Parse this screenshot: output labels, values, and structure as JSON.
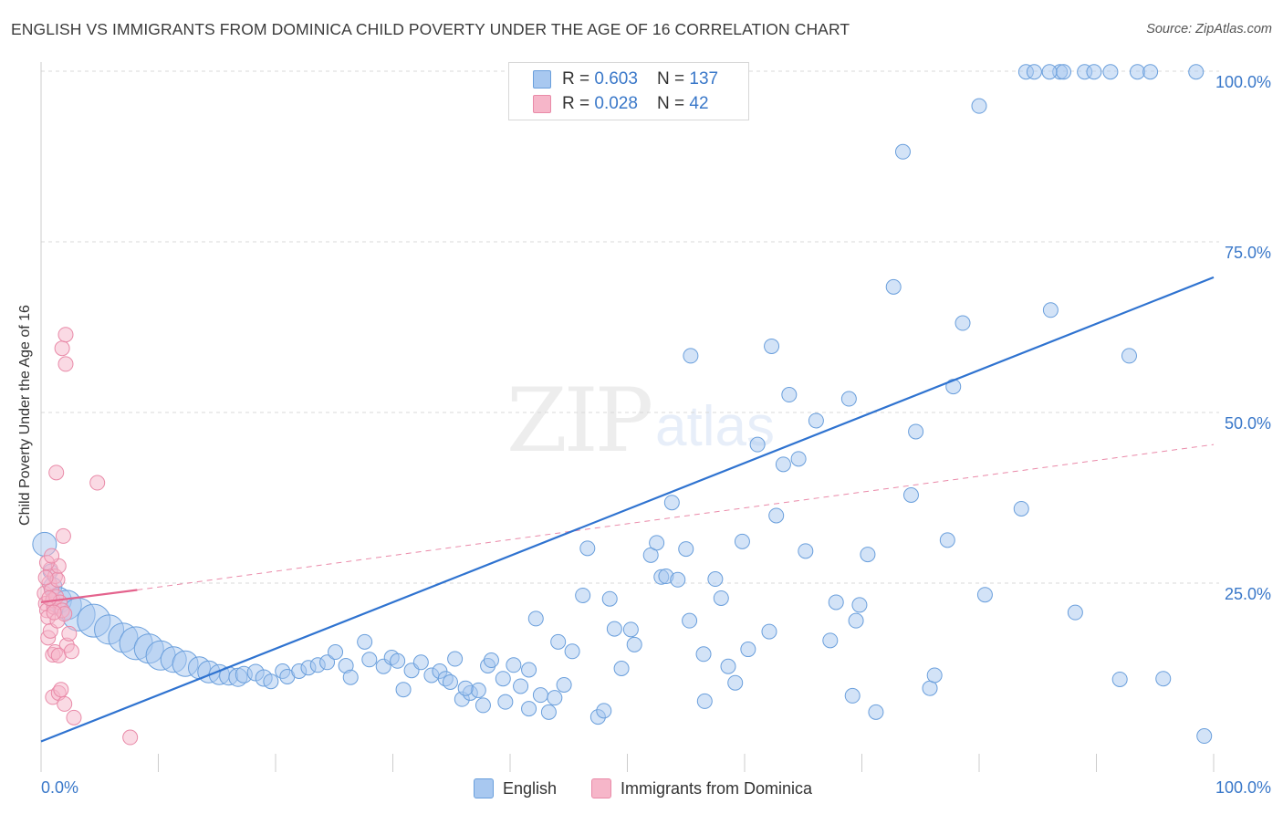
{
  "title": "ENGLISH VS IMMIGRANTS FROM DOMINICA CHILD POVERTY UNDER THE AGE OF 16 CORRELATION CHART",
  "source": "Source: ZipAtlas.com",
  "watermark": {
    "zip": "ZIP",
    "atlas": "atlas"
  },
  "legend_top": {
    "rows": [
      {
        "r_label": "R = ",
        "r_value": "0.603",
        "n_label": "N = ",
        "n_value": "137",
        "color": "#a8c8f0"
      },
      {
        "r_label": "R = ",
        "r_value": "0.028",
        "n_label": "N = ",
        "n_value": " 42",
        "color": "#f6b6c9"
      }
    ]
  },
  "legend_bottom": {
    "series1": "English",
    "series2": "Immigrants from Dominica"
  },
  "colors": {
    "english_fill": "#a8c8f0",
    "english_stroke": "#6a9fdc",
    "english_line": "#2f73d0",
    "dominica_fill": "#f6b6c9",
    "dominica_stroke": "#e98aa8",
    "dominica_line": "#e4638d",
    "axis_label": "#3a78c9"
  },
  "chart_data": {
    "type": "scatter",
    "title": "ENGLISH VS IMMIGRANTS FROM DOMINICA CHILD POVERTY UNDER THE AGE OF 16 CORRELATION CHART",
    "xlabel": "",
    "ylabel": "Child Poverty Under the Age of 16",
    "xlim": [
      0,
      100
    ],
    "ylim": [
      0,
      100
    ],
    "x_tick_labels": [
      "0.0%",
      "100.0%"
    ],
    "y_tick_labels": [
      "25.0%",
      "50.0%",
      "75.0%",
      "100.0%"
    ],
    "y_ticks": [
      25,
      50,
      75,
      100
    ],
    "grid": true,
    "series": [
      {
        "name": "English",
        "r": 0.603,
        "n": 137,
        "trend": {
          "x": [
            0,
            100
          ],
          "y": [
            1.8,
            69.8
          ],
          "style": "solid"
        },
        "points": [
          [
            0.3,
            30.7,
            13
          ],
          [
            0.8,
            26.7,
            8
          ],
          [
            1.0,
            24.5,
            10
          ],
          [
            1.5,
            22.5,
            14
          ],
          [
            2.2,
            21.8,
            16
          ],
          [
            3.2,
            20.4,
            18
          ],
          [
            4.5,
            19.5,
            18
          ],
          [
            5.8,
            18.2,
            16
          ],
          [
            7.0,
            17.0,
            16
          ],
          [
            8.1,
            16.2,
            18
          ],
          [
            9.2,
            15.4,
            16
          ],
          [
            10.2,
            14.4,
            16
          ],
          [
            11.3,
            13.8,
            14
          ],
          [
            12.3,
            13.2,
            14
          ],
          [
            13.5,
            12.6,
            12
          ],
          [
            14.3,
            12.0,
            12
          ],
          [
            15.2,
            11.6,
            11
          ],
          [
            16.0,
            11.4,
            10
          ],
          [
            16.8,
            11.2,
            10
          ],
          [
            17.3,
            11.6,
            9
          ],
          [
            18.3,
            11.9,
            9
          ],
          [
            19.0,
            11.1,
            9
          ],
          [
            19.6,
            10.6,
            8
          ],
          [
            20.6,
            12.1,
            8
          ],
          [
            21.0,
            11.3,
            8
          ],
          [
            22.0,
            12.1,
            8
          ],
          [
            22.8,
            12.6,
            8
          ],
          [
            23.6,
            13.0,
            8
          ],
          [
            24.4,
            13.4,
            8
          ],
          [
            25.1,
            14.9,
            8
          ],
          [
            26.0,
            12.9,
            8
          ],
          [
            26.4,
            11.2,
            8
          ],
          [
            27.6,
            16.4,
            8
          ],
          [
            28.0,
            13.8,
            8
          ],
          [
            29.2,
            12.8,
            8
          ],
          [
            29.9,
            14.1,
            8
          ],
          [
            30.4,
            13.6,
            8
          ],
          [
            30.9,
            9.4,
            8
          ],
          [
            31.6,
            12.2,
            8
          ],
          [
            32.4,
            13.4,
            8
          ],
          [
            33.3,
            11.5,
            8
          ],
          [
            34.0,
            12.1,
            8
          ],
          [
            34.5,
            11.0,
            8
          ],
          [
            35.3,
            13.9,
            8
          ],
          [
            35.9,
            8.0,
            8
          ],
          [
            36.6,
            8.9,
            8
          ],
          [
            37.3,
            9.3,
            8
          ],
          [
            38.1,
            12.9,
            8
          ],
          [
            38.4,
            13.7,
            8
          ],
          [
            39.6,
            7.6,
            8
          ],
          [
            40.3,
            13.0,
            8
          ],
          [
            40.9,
            9.9,
            8
          ],
          [
            41.6,
            6.6,
            8
          ],
          [
            42.2,
            19.8,
            8
          ],
          [
            42.6,
            8.6,
            8
          ],
          [
            43.3,
            6.1,
            8
          ],
          [
            43.8,
            8.2,
            8
          ],
          [
            44.6,
            10.1,
            8
          ],
          [
            45.3,
            15.0,
            8
          ],
          [
            46.2,
            23.2,
            8
          ],
          [
            46.6,
            30.1,
            8
          ],
          [
            47.5,
            5.4,
            8
          ],
          [
            48.0,
            6.3,
            8
          ],
          [
            48.5,
            22.7,
            8
          ],
          [
            48.9,
            18.3,
            8
          ],
          [
            49.5,
            12.5,
            8
          ],
          [
            50.3,
            18.2,
            8
          ],
          [
            50.6,
            16.0,
            8
          ],
          [
            52.0,
            29.1,
            8
          ],
          [
            52.5,
            30.9,
            8
          ],
          [
            52.9,
            25.9,
            8
          ],
          [
            53.8,
            36.8,
            8
          ],
          [
            53.3,
            26.0,
            8
          ],
          [
            54.3,
            25.5,
            8
          ],
          [
            55.0,
            30.0,
            8
          ],
          [
            55.4,
            58.3,
            8
          ],
          [
            56.5,
            14.6,
            8
          ],
          [
            56.6,
            7.7,
            8
          ],
          [
            57.5,
            25.6,
            8
          ],
          [
            58.0,
            22.8,
            8
          ],
          [
            59.2,
            10.4,
            8
          ],
          [
            59.8,
            31.1,
            8
          ],
          [
            60.3,
            15.3,
            8
          ],
          [
            61.1,
            45.3,
            8
          ],
          [
            62.1,
            17.9,
            8
          ],
          [
            62.7,
            34.9,
            8
          ],
          [
            63.3,
            42.4,
            8
          ],
          [
            63.8,
            52.6,
            8
          ],
          [
            64.6,
            43.2,
            8
          ],
          [
            65.2,
            29.7,
            8
          ],
          [
            66.1,
            48.8,
            8
          ],
          [
            67.3,
            16.6,
            8
          ],
          [
            67.8,
            22.2,
            8
          ],
          [
            68.9,
            52.0,
            8
          ],
          [
            69.2,
            8.5,
            8
          ],
          [
            69.5,
            19.5,
            8
          ],
          [
            69.8,
            21.8,
            8
          ],
          [
            70.5,
            29.2,
            8
          ],
          [
            71.2,
            6.1,
            8
          ],
          [
            72.7,
            68.4,
            8
          ],
          [
            73.5,
            88.2,
            8
          ],
          [
            74.2,
            37.9,
            8
          ],
          [
            74.6,
            47.2,
            8
          ],
          [
            75.8,
            9.6,
            8
          ],
          [
            76.2,
            11.5,
            8
          ],
          [
            77.3,
            31.3,
            8
          ],
          [
            77.8,
            53.8,
            8
          ],
          [
            78.6,
            63.1,
            8
          ],
          [
            80.0,
            94.9,
            8
          ],
          [
            80.5,
            23.3,
            8
          ],
          [
            83.6,
            35.9,
            8
          ],
          [
            84.0,
            99.9,
            8
          ],
          [
            86.1,
            65.0,
            8
          ],
          [
            86.9,
            99.9,
            8
          ],
          [
            87.2,
            99.9,
            8
          ],
          [
            88.2,
            20.7,
            8
          ],
          [
            89.0,
            99.9,
            8
          ],
          [
            89.8,
            99.9,
            8
          ],
          [
            91.2,
            99.9,
            8
          ],
          [
            92.0,
            10.9,
            8
          ],
          [
            92.8,
            58.3,
            8
          ],
          [
            93.5,
            99.9,
            8
          ],
          [
            95.7,
            11.0,
            8
          ],
          [
            98.5,
            99.9,
            8
          ],
          [
            99.2,
            2.6,
            8
          ],
          [
            94.6,
            99.9,
            8
          ],
          [
            84.7,
            99.9,
            8
          ],
          [
            86.0,
            99.9,
            8
          ],
          [
            62.3,
            59.7,
            8
          ],
          [
            58.6,
            12.8,
            8
          ],
          [
            55.3,
            19.5,
            8
          ],
          [
            44.1,
            16.4,
            8
          ],
          [
            41.6,
            12.3,
            8
          ],
          [
            39.4,
            11.0,
            8
          ],
          [
            37.7,
            7.1,
            8
          ],
          [
            36.2,
            9.6,
            8
          ],
          [
            34.9,
            10.5,
            8
          ]
        ]
      },
      {
        "name": "Immigrants from Dominica",
        "r": 0.028,
        "n": 42,
        "trend_solid": {
          "x": [
            0,
            8.2
          ],
          "y": [
            22.2,
            24.0
          ]
        },
        "trend_dashed": {
          "x": [
            8.2,
            100
          ],
          "y": [
            24.0,
            45.3
          ]
        },
        "points": [
          [
            0.3,
            23.5,
            8
          ],
          [
            0.4,
            22.0,
            8
          ],
          [
            0.5,
            21.0,
            8
          ],
          [
            0.6,
            20.0,
            8
          ],
          [
            0.7,
            25.0,
            8
          ],
          [
            0.8,
            27.0,
            8
          ],
          [
            0.9,
            24.0,
            8
          ],
          [
            1.0,
            22.5,
            8
          ],
          [
            1.1,
            21.5,
            8
          ],
          [
            1.2,
            26.0,
            8
          ],
          [
            1.3,
            23.0,
            8
          ],
          [
            1.4,
            25.5,
            8
          ],
          [
            1.5,
            27.5,
            8
          ],
          [
            0.5,
            28.0,
            8
          ],
          [
            0.6,
            17.0,
            8
          ],
          [
            0.8,
            18.0,
            8
          ],
          [
            1.0,
            14.5,
            8
          ],
          [
            1.2,
            14.9,
            8
          ],
          [
            1.4,
            19.5,
            8
          ],
          [
            1.6,
            22.2,
            8
          ],
          [
            1.8,
            21.0,
            8
          ],
          [
            2.0,
            20.5,
            8
          ],
          [
            2.2,
            15.9,
            8
          ],
          [
            2.4,
            17.6,
            8
          ],
          [
            1.0,
            8.3,
            8
          ],
          [
            1.5,
            8.9,
            8
          ],
          [
            2.0,
            7.3,
            8
          ],
          [
            1.3,
            41.2,
            8
          ],
          [
            1.8,
            59.4,
            8
          ],
          [
            2.1,
            57.1,
            8
          ],
          [
            4.8,
            39.7,
            8
          ],
          [
            1.9,
            31.9,
            8
          ],
          [
            0.4,
            25.8,
            8
          ],
          [
            0.7,
            22.8,
            8
          ],
          [
            1.1,
            20.7,
            8
          ],
          [
            1.7,
            9.4,
            8
          ],
          [
            1.5,
            14.4,
            8
          ],
          [
            2.1,
            61.4,
            8
          ],
          [
            2.6,
            15.0,
            8
          ],
          [
            2.8,
            5.3,
            8
          ],
          [
            7.6,
            2.4,
            8
          ],
          [
            0.9,
            29.0,
            8
          ]
        ]
      }
    ]
  }
}
